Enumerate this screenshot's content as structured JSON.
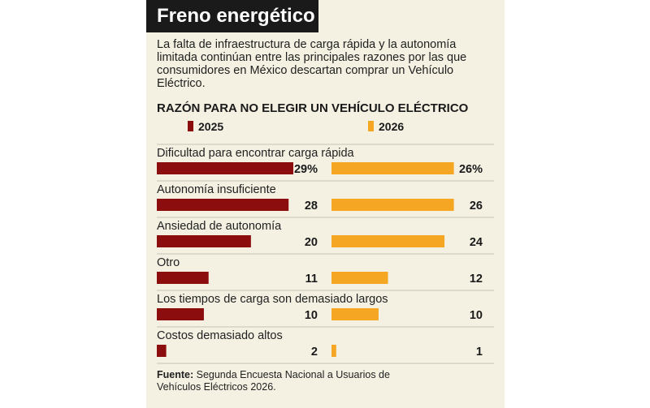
{
  "title": "Freno energético",
  "subtitle": "La falta de infraestructura de carga rápida y la autonomía limitada continúan entre las principales razones por las que consumidores en México descartan comprar un Vehículo Eléctrico.",
  "colors": {
    "background": "#f4f1e3",
    "title_bg": "#1a1a1a",
    "series_2025": "#8b0d0d",
    "series_2026": "#f5a623"
  },
  "chart_data": {
    "type": "bar",
    "title": "RAZÓN PARA NO ELEGIR UN VEHÍCULO ELÉCTRICO",
    "categories": [
      "Dificultad para encontrar carga rápida",
      "Autonomía insuficiente",
      "Ansiedad de autonomía",
      "Otro",
      "Los tiempos de carga son demasiado largos",
      "Costos demasiado altos"
    ],
    "series": [
      {
        "name": "2025",
        "values": [
          29,
          28,
          20,
          11,
          10,
          2
        ],
        "labels": [
          "29%",
          "28",
          "20",
          "11",
          "10",
          "2"
        ]
      },
      {
        "name": "2026",
        "values": [
          26,
          26,
          24,
          12,
          10,
          1
        ],
        "labels": [
          "26%",
          "26",
          "24",
          "12",
          "10",
          "1"
        ]
      }
    ],
    "xlim": [
      0,
      29
    ],
    "legend": "top",
    "orientation": "horizontal"
  },
  "source": {
    "label": "Fuente:",
    "text": " Segunda Encuesta Nacional a Usuarios de Vehículos Eléctricos 2026."
  }
}
